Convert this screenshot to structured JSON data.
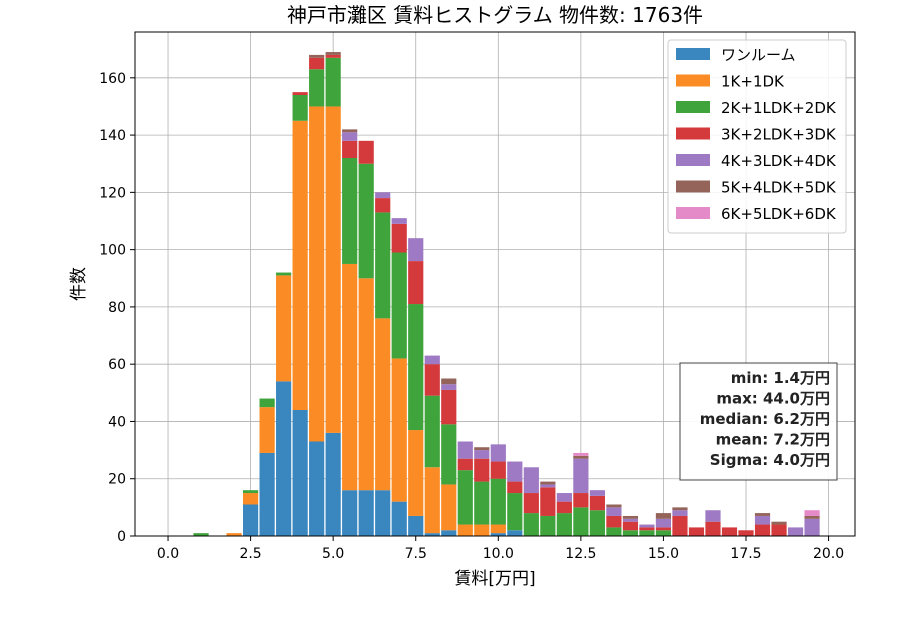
{
  "chart_data": {
    "type": "bar",
    "stacked": true,
    "title": "神戸市灘区 賃料ヒストグラム 物件数: 1763件",
    "xlabel": "賃料[万円]",
    "ylabel": "件数",
    "xlim": [
      -1.0,
      20.8
    ],
    "ylim": [
      0,
      176
    ],
    "xticks": [
      0.0,
      2.5,
      5.0,
      7.5,
      10.0,
      12.5,
      15.0,
      17.5,
      20.0
    ],
    "xtick_labels": [
      "0.0",
      "2.5",
      "5.0",
      "7.5",
      "10.0",
      "12.5",
      "15.0",
      "17.5",
      "20.0"
    ],
    "yticks": [
      0,
      20,
      40,
      60,
      80,
      100,
      120,
      140,
      160
    ],
    "ytick_labels": [
      "0",
      "20",
      "40",
      "60",
      "80",
      "100",
      "120",
      "140",
      "160"
    ],
    "grid": true,
    "legend_position": "top-right",
    "bin_width": 0.5,
    "bin_centers": [
      1.0,
      1.5,
      2.0,
      2.5,
      3.0,
      3.5,
      4.0,
      4.5,
      5.0,
      5.5,
      6.0,
      6.5,
      7.0,
      7.5,
      8.0,
      8.5,
      9.0,
      9.5,
      10.0,
      10.5,
      11.0,
      11.5,
      12.0,
      12.5,
      13.0,
      13.5,
      14.0,
      14.5,
      15.0,
      15.5,
      16.0,
      16.5,
      17.0,
      17.5,
      18.0,
      18.5,
      19.0,
      19.5
    ],
    "series": [
      {
        "name": "ワンルーム",
        "color": "#3a87c0",
        "values": [
          0,
          0,
          0,
          11,
          29,
          54,
          44,
          33,
          36,
          16,
          16,
          16,
          12,
          7,
          1,
          2,
          0,
          0,
          1,
          2,
          0,
          0,
          0,
          0,
          0,
          0,
          0,
          0,
          0,
          0,
          0,
          0,
          0,
          0,
          0,
          0,
          0,
          0
        ]
      },
      {
        "name": "1K+1DK",
        "color": "#fb8b25",
        "values": [
          0,
          0,
          1,
          4,
          16,
          37,
          101,
          117,
          114,
          79,
          74,
          60,
          50,
          30,
          23,
          16,
          4,
          4,
          3,
          0,
          0,
          0,
          0,
          0,
          0,
          0,
          0,
          0,
          0,
          0,
          0,
          0,
          0,
          0,
          0,
          0,
          0,
          0
        ]
      },
      {
        "name": "2K+1LDK+2DK",
        "color": "#40a43c",
        "values": [
          1,
          0,
          0,
          1,
          3,
          1,
          9,
          13,
          17,
          37,
          40,
          37,
          37,
          44,
          25,
          21,
          19,
          15,
          16,
          13,
          8,
          7,
          8,
          10,
          9,
          3,
          2,
          2,
          2,
          0,
          0,
          0,
          0,
          0,
          0,
          0,
          0,
          0
        ]
      },
      {
        "name": "3K+2LDK+3DK",
        "color": "#d43a3b",
        "values": [
          0,
          0,
          0,
          0,
          0,
          0,
          1,
          4,
          1,
          6,
          8,
          5,
          10,
          15,
          11,
          12,
          4,
          8,
          6,
          4,
          7,
          10,
          4,
          5,
          5,
          4,
          3,
          1,
          1,
          7,
          3,
          5,
          3,
          2,
          4,
          4,
          0,
          0
        ]
      },
      {
        "name": "4K+3LDK+4DK",
        "color": "#9e79c4",
        "values": [
          0,
          0,
          0,
          0,
          0,
          0,
          0,
          0,
          0,
          3,
          0,
          2,
          2,
          8,
          3,
          2,
          6,
          3,
          6,
          7,
          9,
          1,
          3,
          12,
          2,
          3,
          1,
          1,
          3,
          2,
          0,
          4,
          0,
          0,
          3,
          0,
          3,
          6
        ]
      },
      {
        "name": "5K+4LDK+5DK",
        "color": "#94645a",
        "values": [
          0,
          0,
          0,
          0,
          0,
          0,
          0,
          1,
          1,
          1,
          0,
          0,
          0,
          0,
          0,
          2,
          0,
          1,
          0,
          0,
          0,
          1,
          0,
          1,
          0,
          1,
          1,
          0,
          2,
          1,
          0,
          0,
          0,
          0,
          1,
          1,
          0,
          1
        ]
      },
      {
        "name": "6K+5LDK+6DK",
        "color": "#e58ac8",
        "values": [
          0,
          0,
          0,
          0,
          0,
          0,
          0,
          0,
          0,
          0,
          0,
          0,
          0,
          0,
          0,
          0,
          0,
          0,
          0,
          0,
          0,
          0,
          0,
          1,
          0,
          0,
          0,
          0,
          0,
          0,
          0,
          0,
          0,
          0,
          0,
          0,
          0,
          2
        ]
      }
    ],
    "stats_box": [
      "min: 1.4万円",
      "max: 44.0万円",
      "median: 6.2万円",
      "mean: 7.2万円",
      "Sigma: 4.0万円"
    ]
  }
}
